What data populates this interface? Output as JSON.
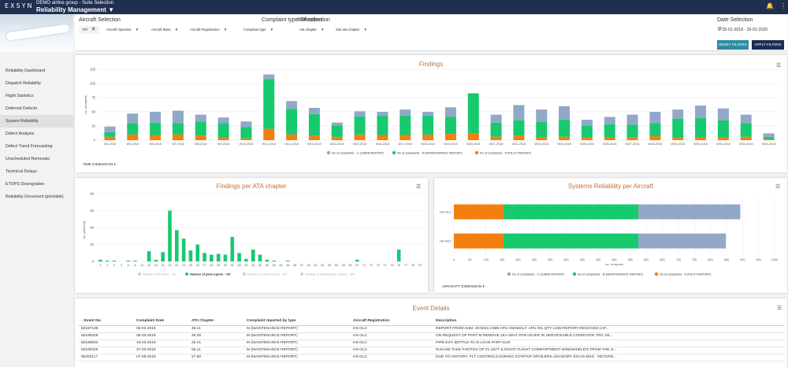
{
  "topbar": {
    "logo": "EXSYN",
    "group": "DEMO airline group - Suite Selection",
    "module": "Reliability Management ▼",
    "icons": [
      "bell-icon",
      "menu-icon"
    ]
  },
  "sidebar": {
    "items": [
      "Reliability Dashboard",
      "Dispatch Reliability",
      "Flight Statistics",
      "Deferred Defects",
      "System Reliability",
      "Defect Analysis",
      "Defect Trend Forecasting",
      "Unscheduled Removals",
      "Technical Delays",
      "ETOPS Downgrades",
      "Reliability Document (printable)"
    ],
    "active_index": 4
  },
  "filters": {
    "aircraft_selection": "Aircraft Selection",
    "complaint_type_selection": "Complaint type selection",
    "ata_selection": "ATA selection",
    "date_selection": "Date Selection",
    "chip_787": "787",
    "operator": "Aircraft Operator",
    "base": "Aircraft Base",
    "registration": "Aircraft Registration",
    "complaint_type": "Complaint type",
    "ata_chapter": "Ata chapter",
    "sub_ata": "Sub ata chapter",
    "date_range": "25-01-2018 - 25-01-2020",
    "reset": "RESET FILTERS",
    "apply": "APPLY FILTERS"
  },
  "colors": {
    "cabin": "#91a8c9",
    "maintenance": "#17c96f",
    "pilot": "#f47f0f",
    "nav": "#1f2f4f",
    "reset": "#2e8aa3",
    "apply": "#1e2b55",
    "title": "#c0703a"
  },
  "findings": {
    "title": "Findings",
    "ylabel": "no. of reports",
    "time_dimension": "TIME DIMENSION ▾",
    "legend": [
      "No of complaints - C (CABIN REPORT)",
      "No of complaints - M (MAINTENANCE REPORT)",
      "No of complaints - P (PILOT REPORT)"
    ]
  },
  "ata_chart": {
    "title": "Findings per ATA chapter",
    "ylabel": "no. (percent)",
    "legend": [
      "Number of FH done - 787",
      "Number of pilot reports - 787",
      "Number of cabin reports - 787",
      "Number of maintenance reports - 787"
    ]
  },
  "sys_chart": {
    "title": "Systems Reliability per Aircraft",
    "xlabel": "no. of reports",
    "dimension": "AIRCRAFT DIMENSION ▾",
    "legend": [
      "No of complaints - C (CABIN REPORT)",
      "No of complaints - M (MAINTENANCE REPORT)",
      "No of complaints - P (PILOT REPORT)"
    ]
  },
  "events": {
    "title": "Event Details",
    "columns": [
      "Event No.",
      "Complaint Date",
      "ATA Chapter",
      "Complaint reported by type",
      "Aircraft Registration",
      "Description"
    ],
    "rows": [
      [
        "50187135",
        "06-02-2018",
        "49.11",
        "M (MAINTENANCE REPORT)",
        "HS-GLC",
        "REPORT FROM AHM: 49-0041-C580 APU ANOMALY: APU OIL QTY LOW REPORT RECEIVED (AP..."
      ],
      [
        "50195329",
        "08-03-2018",
        "25.25",
        "M (MAINTENANCE REPORT)",
        "HS-GLC",
        "ON REQUEST OF PART M REMOVE 1EA SEAT PAN LEVER IN SERVICEABLE CONDITION. P/N: SE..."
      ],
      [
        "50196832",
        "16-03-2018",
        "26.21",
        "M (MAINTENANCE REPORT)",
        "HS-GLC",
        "FIRE EXT. BOTTLE #2 IS LOAN PART KLM"
      ],
      [
        "50190329",
        "27-03-2018",
        "56.11",
        "M (MAINTENANCE REPORT)",
        "HS-GLC",
        "PLEASE TAKE PHOTOS OF #1 LEFT & RIGHT FLIGHT COMPARTMENT WINDSHIELD'S FROM THE O..."
      ],
      [
        "50253117",
        "07-05-2018",
        "27.60",
        "M (MAINTENANCE REPORT)",
        "HS-GLC",
        "DUE TO HISTORY: FLT CONTROLS DURING STARTUP SPOILERS ADVISORY EICAS MSG . RETURN..."
      ]
    ]
  },
  "chart_data": [
    {
      "type": "bar",
      "title": "Findings",
      "ylabel": "no. of reports",
      "ylim": [
        0,
        125
      ],
      "yticks": [
        0,
        25,
        50,
        75,
        100,
        125
      ],
      "categories": [
        "W4-2018",
        "W5-2018",
        "W6-2018",
        "W7-2018",
        "W8-2018",
        "W9-2018",
        "W10-2018",
        "W11-2018",
        "W12-2018",
        "W13-2018",
        "W14-2018",
        "W15-2018",
        "W16-2018",
        "W17-2018",
        "W18-2018",
        "W19-2018",
        "W20-2018",
        "W21-2018",
        "W22-2018",
        "W23-2018",
        "W24-2018",
        "W25-2018",
        "W26-2018",
        "W27-2018",
        "W28-2018",
        "W29-2018",
        "W30-2018",
        "W31-2018",
        "W32-2018",
        "W33-2018"
      ],
      "series": [
        {
          "name": "No of complaints - P (PILOT REPORT)",
          "values": [
            6,
            10,
            9,
            10,
            8,
            4,
            3,
            20,
            10,
            8,
            6,
            10,
            9,
            9,
            10,
            11,
            12,
            6,
            8,
            5,
            6,
            5,
            5,
            5,
            7,
            4,
            5,
            5,
            6,
            2
          ]
        },
        {
          "name": "No of complaints - M (MAINTENANCE REPORT)",
          "values": [
            8,
            20,
            22,
            20,
            25,
            26,
            20,
            88,
            45,
            38,
            20,
            32,
            34,
            34,
            33,
            30,
            70,
            25,
            27,
            27,
            30,
            21,
            23,
            22,
            23,
            34,
            34,
            30,
            24,
            4
          ]
        },
        {
          "name": "No of complaints - C (CABIN REPORT)",
          "values": [
            10,
            17,
            19,
            22,
            12,
            10,
            10,
            8,
            14,
            11,
            5,
            9,
            7,
            11,
            7,
            17,
            1,
            14,
            27,
            22,
            24,
            10,
            13,
            18,
            20,
            16,
            22,
            21,
            15,
            6
          ]
        }
      ]
    },
    {
      "type": "bar",
      "title": "Findings per ATA chapter",
      "ylabel": "no. (percent)",
      "ylim": [
        0,
        80
      ],
      "yticks": [
        0,
        20,
        40,
        60,
        80
      ],
      "categories": [
        "0",
        "1",
        "2",
        "3",
        "5",
        "6",
        "11",
        "12",
        "20",
        "21",
        "22",
        "23",
        "24",
        "25",
        "26",
        "27",
        "28",
        "29",
        "30",
        "31",
        "32",
        "33",
        "34",
        "35",
        "36",
        "38",
        "44",
        "45",
        "46",
        "47",
        "49",
        "51",
        "52",
        "53",
        "54",
        "55",
        "56",
        "57",
        "71",
        "72",
        "73",
        "74",
        "75",
        "76",
        "77",
        "78",
        "79"
      ],
      "series": [
        {
          "name": "Number of pilot reports - 787",
          "values": [
            2,
            1,
            1,
            0,
            1,
            1,
            0,
            12,
            2,
            11,
            60,
            37,
            27,
            13,
            20,
            10,
            8,
            9,
            8,
            29,
            10,
            3,
            14,
            8,
            2,
            1,
            0,
            1,
            0,
            0,
            0,
            0,
            0,
            0,
            0,
            0,
            0,
            2,
            0,
            0,
            0,
            0,
            0,
            14,
            0,
            0,
            0
          ]
        }
      ]
    },
    {
      "type": "bar",
      "orientation": "horizontal",
      "title": "Systems Reliability per Aircraft",
      "xlabel": "no. of reports",
      "xlim": [
        0,
        1000
      ],
      "xticks": [
        0,
        50,
        100,
        150,
        200,
        250,
        300,
        350,
        400,
        450,
        500,
        550,
        600,
        650,
        700,
        750,
        800,
        850,
        900,
        950,
        1000
      ],
      "categories": [
        "HS-GLC",
        "HS-REY"
      ],
      "series": [
        {
          "name": "No of complaints - P (PILOT REPORT)",
          "values": [
            155,
            155
          ]
        },
        {
          "name": "No of complaints - M (MAINTENANCE REPORT)",
          "values": [
            420,
            420
          ]
        },
        {
          "name": "No of complaints - C (CABIN REPORT)",
          "values": [
            318,
            273
          ]
        }
      ]
    }
  ]
}
